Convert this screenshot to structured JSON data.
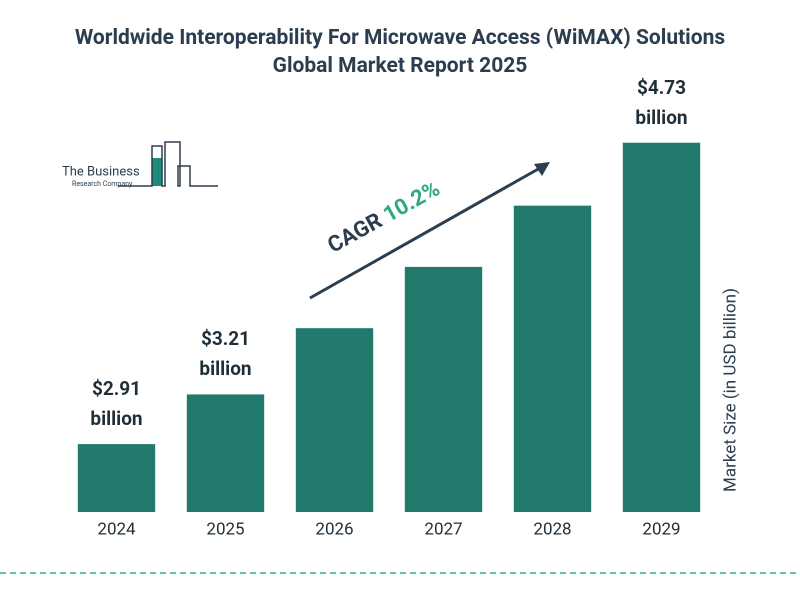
{
  "chart_data": {
    "type": "bar",
    "title": "Worldwide Interoperability For Microwave Access (WiMAX) Solutions Global Market Report 2025",
    "categories": [
      "2024",
      "2025",
      "2026",
      "2027",
      "2028",
      "2029"
    ],
    "values": [
      2.91,
      3.21,
      3.61,
      3.98,
      4.35,
      4.73
    ],
    "value_labels": [
      "$2.91 billion",
      "$3.21 billion",
      null,
      null,
      null,
      "$4.73 billion"
    ],
    "color": "#217a6b",
    "ylim": [
      2.5,
      5.0
    ],
    "y_label": "Market Size (in USD billion)",
    "cagr_label": "CAGR",
    "cagr_value": "10.2%"
  },
  "logo": {
    "name": "The Business",
    "subtitle": "Research Company"
  }
}
